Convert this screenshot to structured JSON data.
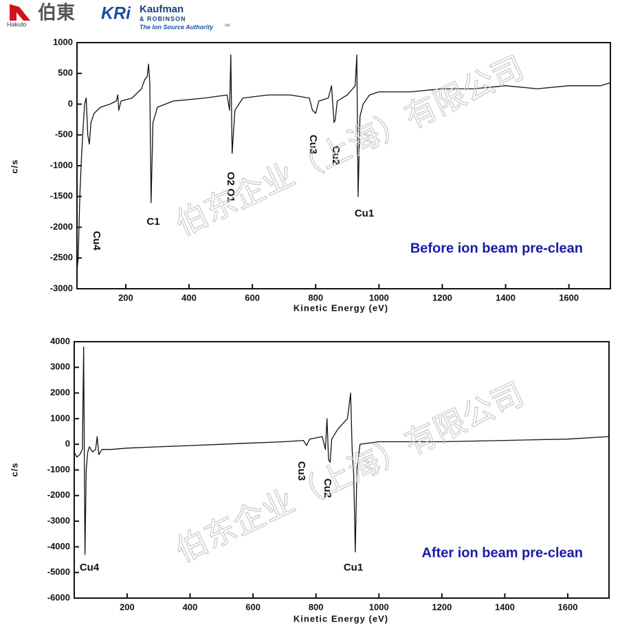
{
  "header": {
    "hakuto": "Hakuto",
    "hakuto_cn": "伯東",
    "kri": "KRi",
    "kaufman": "Kaufman",
    "robinson": "& ROBINSON",
    "tagline": "The Ion Source Authority",
    "sm": "SM"
  },
  "watermark": "伯东企业（上海）有限公司",
  "chart_data": [
    {
      "type": "line",
      "y_label": "c/s",
      "x_label": "Kinetic Energy (eV)",
      "note": "Before ion beam pre-clean",
      "color": "#111111",
      "annotations": [
        "Cu4",
        "C1",
        "O2 O1",
        "Cu3",
        "Cu2",
        "Cu1"
      ],
      "xlim": [
        46,
        1731
      ],
      "xticks": [
        200,
        400,
        600,
        800,
        1000,
        1200,
        1400,
        1600
      ],
      "ylim": [
        -3000,
        1000
      ],
      "yticks": [
        1000,
        500,
        0,
        -500,
        -1000,
        -1500,
        -2000,
        -2500,
        -3000
      ],
      "x": [
        46,
        50,
        55,
        60,
        65,
        70,
        75,
        80,
        85,
        90,
        100,
        120,
        150,
        170,
        175,
        178,
        185,
        220,
        250,
        260,
        268,
        272,
        276,
        280,
        286,
        300,
        350,
        450,
        520,
        528,
        532,
        536,
        545,
        570,
        650,
        720,
        780,
        790,
        800,
        810,
        840,
        850,
        858,
        862,
        868,
        900,
        925,
        930,
        934,
        940,
        950,
        970,
        1000,
        1100,
        1200,
        1300,
        1400,
        1500,
        1600,
        1700,
        1731
      ],
      "values": [
        -2700,
        -2500,
        -1500,
        -900,
        -400,
        0,
        100,
        -500,
        -650,
        -300,
        -150,
        -50,
        0,
        50,
        150,
        -100,
        50,
        100,
        250,
        400,
        450,
        650,
        350,
        -1600,
        -300,
        -50,
        50,
        100,
        150,
        -100,
        800,
        -800,
        -100,
        100,
        150,
        150,
        100,
        -100,
        -150,
        50,
        100,
        300,
        -300,
        -250,
        50,
        150,
        300,
        800,
        -1500,
        -200,
        0,
        150,
        200,
        200,
        250,
        250,
        300,
        250,
        300,
        300,
        350
      ]
    },
    {
      "type": "line",
      "y_label": "c/s",
      "x_label": "Kinetic Energy (eV)",
      "note": "After ion beam pre-clean",
      "color": "#111111",
      "annotations": [
        "Cu4",
        "Cu3",
        "Cu2",
        "Cu1"
      ],
      "xlim": [
        32,
        1731
      ],
      "xticks": [
        200,
        400,
        600,
        800,
        1000,
        1200,
        1400,
        1600
      ],
      "ylim": [
        -6000,
        4000
      ],
      "yticks": [
        4000,
        3000,
        2000,
        1000,
        0,
        -1000,
        -2000,
        -3000,
        -4000,
        -5000,
        -6000
      ],
      "x": [
        32,
        40,
        50,
        58,
        62,
        66,
        70,
        75,
        80,
        90,
        100,
        105,
        110,
        120,
        150,
        200,
        300,
        400,
        500,
        600,
        700,
        760,
        770,
        780,
        820,
        830,
        835,
        840,
        845,
        850,
        870,
        900,
        910,
        915,
        920,
        925,
        930,
        940,
        1000,
        1200,
        1400,
        1600,
        1731
      ],
      "values": [
        -300,
        -500,
        -400,
        -200,
        3800,
        -4300,
        -1000,
        -300,
        -100,
        -300,
        -200,
        300,
        -400,
        -200,
        -200,
        -150,
        -100,
        -50,
        0,
        50,
        100,
        150,
        -50,
        200,
        300,
        -200,
        1000,
        -600,
        -700,
        200,
        600,
        1000,
        2000,
        -200,
        -1200,
        -4200,
        -1000,
        0,
        100,
        100,
        150,
        200,
        300
      ]
    }
  ]
}
